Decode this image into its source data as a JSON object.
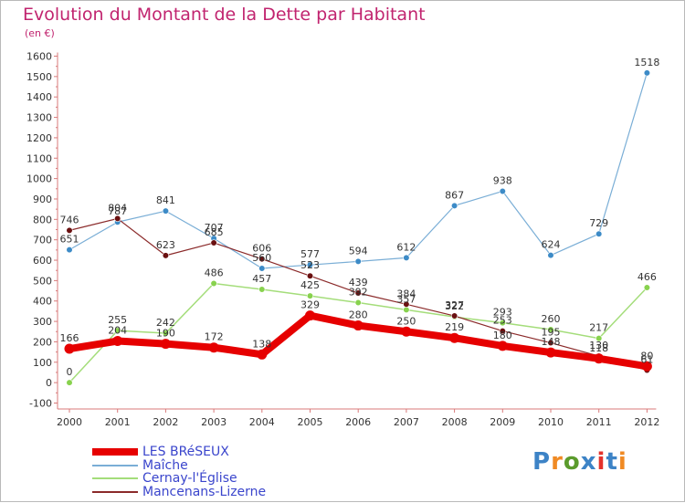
{
  "header": {
    "title": "Evolution du Montant de la Dette par Habitant",
    "unit": "(en €)"
  },
  "logo": {
    "text": "Proxiti",
    "colors": [
      "#3d83c6",
      "#f08a24",
      "#5b9b2c",
      "#3d83c6",
      "#e4322b",
      "#3d83c6",
      "#f08a24"
    ]
  },
  "chart_data": {
    "type": "line",
    "x": [
      "2000",
      "2001",
      "2002",
      "2003",
      "2004",
      "2005",
      "2006",
      "2007",
      "2008",
      "2009",
      "2010",
      "2011",
      "2012"
    ],
    "ylim": [
      -100,
      1600
    ],
    "yticks": [
      -100,
      0,
      100,
      200,
      300,
      400,
      500,
      600,
      700,
      800,
      900,
      1000,
      1100,
      1200,
      1300,
      1400,
      1500,
      1600
    ],
    "grid": false,
    "legend_position": "bottom-left",
    "series": [
      {
        "name": "LES BRéSEUX",
        "color": "#e60000",
        "width": 8,
        "marker_fill": "#e60000",
        "values": [
          166,
          204,
          190,
          172,
          138,
          329,
          280,
          250,
          219,
          180,
          148,
          118,
          80
        ]
      },
      {
        "name": "Maîche",
        "color": "#7aaed6",
        "width": 1.2,
        "marker_fill": "#3d8bc7",
        "values": [
          651,
          787,
          841,
          707,
          560,
          577,
          594,
          612,
          867,
          938,
          624,
          729,
          1518
        ]
      },
      {
        "name": "Cernay-l'Église",
        "color": "#a4dd7a",
        "width": 1.5,
        "marker_fill": "#88d24e",
        "values": [
          0,
          255,
          242,
          486,
          457,
          425,
          392,
          357,
          322,
          293,
          260,
          217,
          466
        ]
      },
      {
        "name": "Mancenans-Lizerne",
        "color": "#8b2a2a",
        "width": 1.2,
        "marker_fill": "#6a1010",
        "values": [
          746,
          804,
          623,
          685,
          606,
          523,
          439,
          384,
          327,
          253,
          195,
          130,
          61
        ]
      }
    ]
  }
}
